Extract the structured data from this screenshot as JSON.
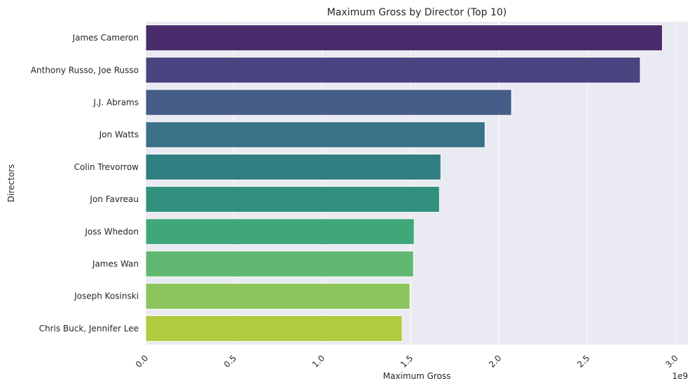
{
  "chart_data": {
    "type": "bar",
    "orientation": "horizontal",
    "title": "Maximum Gross by Director (Top 10)",
    "xlabel": "Maximum Gross",
    "ylabel": "Directors",
    "x_offset_label": "1e9",
    "xlim": [
      0,
      3.07
    ],
    "x_ticks": [
      0.0,
      0.5,
      1.0,
      1.5,
      2.0,
      2.5,
      3.0
    ],
    "x_tick_labels": [
      "0.0",
      "0.5",
      "1.0",
      "1.5",
      "2.0",
      "2.5",
      "3.0"
    ],
    "grid": true,
    "categories": [
      "James Cameron",
      "Anthony Russo, Joe Russo",
      "J.J. Abrams",
      "Jon Watts",
      "Colin Trevorrow",
      "Jon Favreau",
      "Joss Whedon",
      "James Wan",
      "Joseph Kosinski",
      "Chris Buck, Jennifer Lee"
    ],
    "values": [
      2.925,
      2.8,
      2.071,
      1.921,
      1.671,
      1.663,
      1.52,
      1.516,
      1.496,
      1.452
    ],
    "value_unit_multiplier": 1000000000.0,
    "colors": [
      "#4a2c6c",
      "#4a4580",
      "#455d87",
      "#3b7089",
      "#317f80",
      "#31907e",
      "#40a77a",
      "#60b870",
      "#8cc45d",
      "#b0cb3e"
    ],
    "background": "#eaeaf2"
  }
}
